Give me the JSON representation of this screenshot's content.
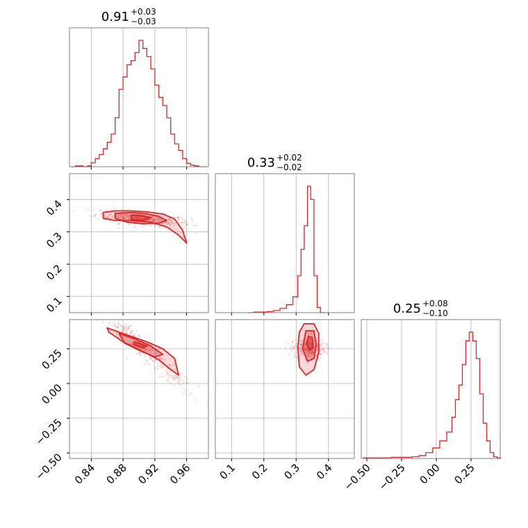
{
  "chart_data": {
    "type": "corner",
    "color": "#d62728",
    "grid": true,
    "axes": {
      "p1": {
        "range": [
          0.8125,
          0.9875
        ],
        "ticks": [
          0.84,
          0.88,
          0.92,
          0.96
        ],
        "tick_labels": [
          "0.84",
          "0.88",
          "0.92",
          "0.96"
        ]
      },
      "p2": {
        "range": [
          0.05,
          0.48
        ],
        "ticks": [
          0.1,
          0.2,
          0.3,
          0.4
        ],
        "tick_labels": [
          "0.1",
          "0.2",
          "0.3",
          "0.4"
        ]
      },
      "p3": {
        "range": [
          -0.54,
          0.46
        ],
        "ticks": [
          -0.5,
          -0.25,
          0.0,
          0.25
        ],
        "tick_labels": [
          "−0.50",
          "−0.25",
          "0.00",
          "0.25"
        ]
      }
    },
    "titles": [
      {
        "median": "0.91",
        "plus": "+0.03",
        "minus": "−0.03"
      },
      {
        "median": "0.33",
        "plus": "+0.02",
        "minus": "−0.02"
      },
      {
        "median": "0.25",
        "plus": "+0.08",
        "minus": "−0.10"
      }
    ],
    "histograms": [
      {
        "parameter": "p1",
        "x": [
          0.8175,
          0.8225,
          0.8275,
          0.8325,
          0.8375,
          0.8425,
          0.8475,
          0.8525,
          0.8575,
          0.8625,
          0.8675,
          0.8725,
          0.8775,
          0.8825,
          0.8875,
          0.8925,
          0.8975,
          0.9025,
          0.9075,
          0.9125,
          0.9175,
          0.9225,
          0.9275,
          0.9325,
          0.9375,
          0.9425,
          0.9475,
          0.9525,
          0.9575,
          0.9625,
          0.9675,
          0.9725,
          0.9775,
          0.9825
        ],
        "counts": [
          0,
          1,
          1,
          0,
          1,
          5,
          10,
          15,
          22,
          30,
          40,
          60,
          95,
          110,
          125,
          130,
          140,
          155,
          145,
          135,
          120,
          100,
          85,
          75,
          60,
          40,
          28,
          20,
          10,
          4,
          2,
          1,
          0,
          0
        ]
      },
      {
        "parameter": "p2",
        "x": [
          0.16,
          0.18,
          0.2,
          0.22,
          0.24,
          0.26,
          0.28,
          0.3,
          0.31,
          0.32,
          0.33,
          0.34,
          0.35,
          0.36,
          0.37,
          0.38,
          0.39
        ],
        "counts": [
          0,
          1,
          1,
          2,
          4,
          8,
          15,
          30,
          70,
          120,
          165,
          240,
          215,
          70,
          10,
          0,
          0
        ]
      },
      {
        "parameter": "p3",
        "x": [
          -0.5,
          -0.45,
          -0.4,
          -0.35,
          -0.3,
          -0.25,
          -0.2,
          -0.15,
          -0.1,
          -0.05,
          0.0,
          0.05,
          0.1,
          0.125,
          0.15,
          0.175,
          0.2,
          0.225,
          0.25,
          0.275,
          0.3,
          0.325,
          0.35,
          0.375,
          0.4,
          0.425,
          0.45
        ],
        "counts": [
          1,
          1,
          1,
          1,
          2,
          2,
          2,
          3,
          5,
          10,
          18,
          30,
          45,
          70,
          100,
          125,
          160,
          200,
          215,
          200,
          170,
          110,
          60,
          30,
          10,
          3,
          1
        ]
      }
    ],
    "scatter_panels": [
      {
        "x": "p1",
        "y": "p2",
        "contours": [
          [
            [
              0.855,
              0.36
            ],
            [
              0.87,
              0.365
            ],
            [
              0.89,
              0.365
            ],
            [
              0.91,
              0.362
            ],
            [
              0.93,
              0.355
            ],
            [
              0.945,
              0.34
            ],
            [
              0.955,
              0.305
            ],
            [
              0.96,
              0.265
            ],
            [
              0.95,
              0.29
            ],
            [
              0.935,
              0.315
            ],
            [
              0.915,
              0.33
            ],
            [
              0.89,
              0.335
            ],
            [
              0.87,
              0.335
            ],
            [
              0.855,
              0.342
            ]
          ],
          [
            [
              0.87,
              0.357
            ],
            [
              0.89,
              0.36
            ],
            [
              0.91,
              0.356
            ],
            [
              0.925,
              0.348
            ],
            [
              0.935,
              0.335
            ],
            [
              0.925,
              0.327
            ],
            [
              0.905,
              0.325
            ],
            [
              0.885,
              0.33
            ],
            [
              0.87,
              0.342
            ]
          ],
          [
            [
              0.89,
              0.352
            ],
            [
              0.905,
              0.35
            ],
            [
              0.915,
              0.343
            ],
            [
              0.905,
              0.335
            ],
            [
              0.89,
              0.338
            ]
          ]
        ],
        "scatter": {
          "center": [
            0.905,
            0.34
          ],
          "spread": [
            0.03,
            0.03
          ],
          "count": 320,
          "slope": -0.25
        }
      },
      {
        "x": "p1",
        "y": "p3",
        "contours": [
          [
            [
              0.86,
              0.4
            ],
            [
              0.88,
              0.36
            ],
            [
              0.91,
              0.3
            ],
            [
              0.93,
              0.25
            ],
            [
              0.945,
              0.18
            ],
            [
              0.95,
              0.06
            ],
            [
              0.94,
              0.1
            ],
            [
              0.925,
              0.17
            ],
            [
              0.905,
              0.23
            ],
            [
              0.88,
              0.3
            ],
            [
              0.862,
              0.37
            ]
          ],
          [
            [
              0.875,
              0.36
            ],
            [
              0.895,
              0.32
            ],
            [
              0.915,
              0.27
            ],
            [
              0.93,
              0.21
            ],
            [
              0.92,
              0.19
            ],
            [
              0.9,
              0.24
            ],
            [
              0.882,
              0.29
            ]
          ],
          [
            [
              0.895,
              0.3
            ],
            [
              0.91,
              0.27
            ],
            [
              0.905,
              0.255
            ],
            [
              0.893,
              0.28
            ]
          ]
        ],
        "scatter": {
          "center": [
            0.905,
            0.25
          ],
          "spread": [
            0.035,
            0.12
          ],
          "count": 300,
          "slope": -5.0
        }
      },
      {
        "x": "p2",
        "y": "p3",
        "contours": [
          [
            [
              0.325,
              0.43
            ],
            [
              0.355,
              0.43
            ],
            [
              0.37,
              0.36
            ],
            [
              0.37,
              0.22
            ],
            [
              0.355,
              0.1
            ],
            [
              0.33,
              0.06
            ],
            [
              0.31,
              0.12
            ],
            [
              0.305,
              0.25
            ],
            [
              0.31,
              0.37
            ]
          ],
          [
            [
              0.33,
              0.38
            ],
            [
              0.355,
              0.38
            ],
            [
              0.362,
              0.28
            ],
            [
              0.355,
              0.18
            ],
            [
              0.335,
              0.16
            ],
            [
              0.32,
              0.25
            ]
          ],
          [
            [
              0.338,
              0.34
            ],
            [
              0.35,
              0.33
            ],
            [
              0.352,
              0.26
            ],
            [
              0.34,
              0.24
            ],
            [
              0.332,
              0.29
            ]
          ]
        ],
        "scatter": {
          "center": [
            0.34,
            0.25
          ],
          "spread": [
            0.025,
            0.1
          ],
          "count": 280,
          "slope": 0
        }
      }
    ]
  }
}
